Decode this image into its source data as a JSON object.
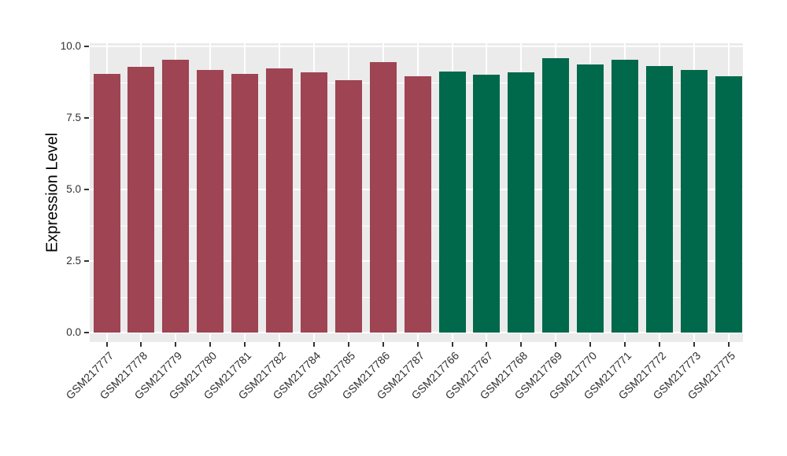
{
  "figure": {
    "background": "#FFFFFF",
    "plot_background": "#EBEBEB",
    "grid_color": "#FFFFFF",
    "tick_color": "#333333",
    "axis_text_color": "#303030",
    "axis_title_color": "#000000"
  },
  "chart_data": {
    "type": "bar",
    "title": "",
    "xlabel": "",
    "ylabel": "Expression Level",
    "ylim": [
      0,
      10.1
    ],
    "yticks": [
      0,
      2.5,
      5,
      7.5,
      10
    ],
    "ytick_labels": [
      "0.0",
      "2.5",
      "5.0",
      "7.5",
      "10.0"
    ],
    "yminor": [
      1.25,
      3.75,
      6.25,
      8.75
    ],
    "grid": true,
    "legend": "none",
    "categories": [
      "GSM217777",
      "GSM217778",
      "GSM217779",
      "GSM217780",
      "GSM217781",
      "GSM217782",
      "GSM217784",
      "GSM217785",
      "GSM217786",
      "GSM217787",
      "GSM217766",
      "GSM217767",
      "GSM217768",
      "GSM217769",
      "GSM217770",
      "GSM217771",
      "GSM217772",
      "GSM217773",
      "GSM217775"
    ],
    "values": [
      9.03,
      9.29,
      9.52,
      9.18,
      9.03,
      9.24,
      9.08,
      8.83,
      9.46,
      8.96,
      9.12,
      9.01,
      9.1,
      9.58,
      9.38,
      9.53,
      9.31,
      9.18,
      8.96
    ],
    "groups": [
      "group1",
      "group1",
      "group1",
      "group1",
      "group1",
      "group1",
      "group1",
      "group1",
      "group1",
      "group1",
      "group2",
      "group2",
      "group2",
      "group2",
      "group2",
      "group2",
      "group2",
      "group2",
      "group2"
    ],
    "group_colors": {
      "group1": "#9E4453",
      "group2": "#00684B"
    },
    "x_label_rotation_deg": 45
  }
}
